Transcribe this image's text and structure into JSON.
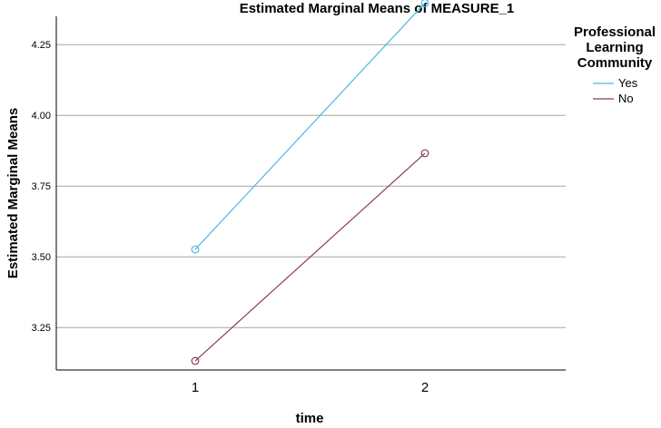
{
  "chart_data": {
    "type": "line",
    "title": "Estimated Marginal Means of MEASURE_1",
    "xlabel": "time",
    "ylabel": "Estimated Marginal Means",
    "categories": [
      "1",
      "2"
    ],
    "ylim": [
      3.1,
      4.35
    ],
    "yticks": [
      3.25,
      3.5,
      3.75,
      4.0,
      4.25
    ],
    "ytick_labels": [
      "3.25",
      "3.50",
      "3.75",
      "4.00",
      "4.25"
    ],
    "grid": true,
    "legend": {
      "title_lines": [
        "Professional",
        "Learning",
        "Community"
      ],
      "placement": "right"
    },
    "series": [
      {
        "name": "Yes",
        "color": "#4db8e0",
        "values": [
          3.526,
          4.397
        ]
      },
      {
        "name": "No",
        "color": "#8b3a62",
        "values": [
          3.132,
          3.866
        ]
      }
    ]
  }
}
